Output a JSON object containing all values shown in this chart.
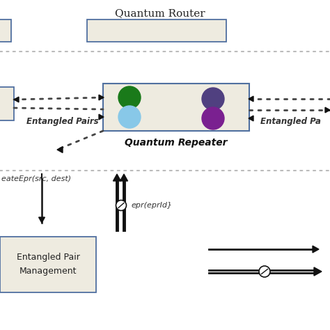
{
  "bg_color": "#ffffff",
  "title": "Quantum Router",
  "box_fill": "#eeebe0",
  "box_edge": "#5070a0",
  "arrow_color": "#111111",
  "dot_color": "#444444",
  "green_dark": "#1a7a1a",
  "green_light": "#88c8e8",
  "purple_dark": "#504080",
  "purple_bright": "#7a2090",
  "repeater_label": "Quantum Repeater",
  "entangled_left_label": "Entangled Pairs",
  "entangled_right_label": "Entangled Pa",
  "bottom_label1": "eateEpr(src, dest)",
  "bottom_label2": "epr(eprId}",
  "bottom_box_label1": "Entangled Pair",
  "bottom_box_label2": "Management",
  "sep_color": "#bbbbbb"
}
